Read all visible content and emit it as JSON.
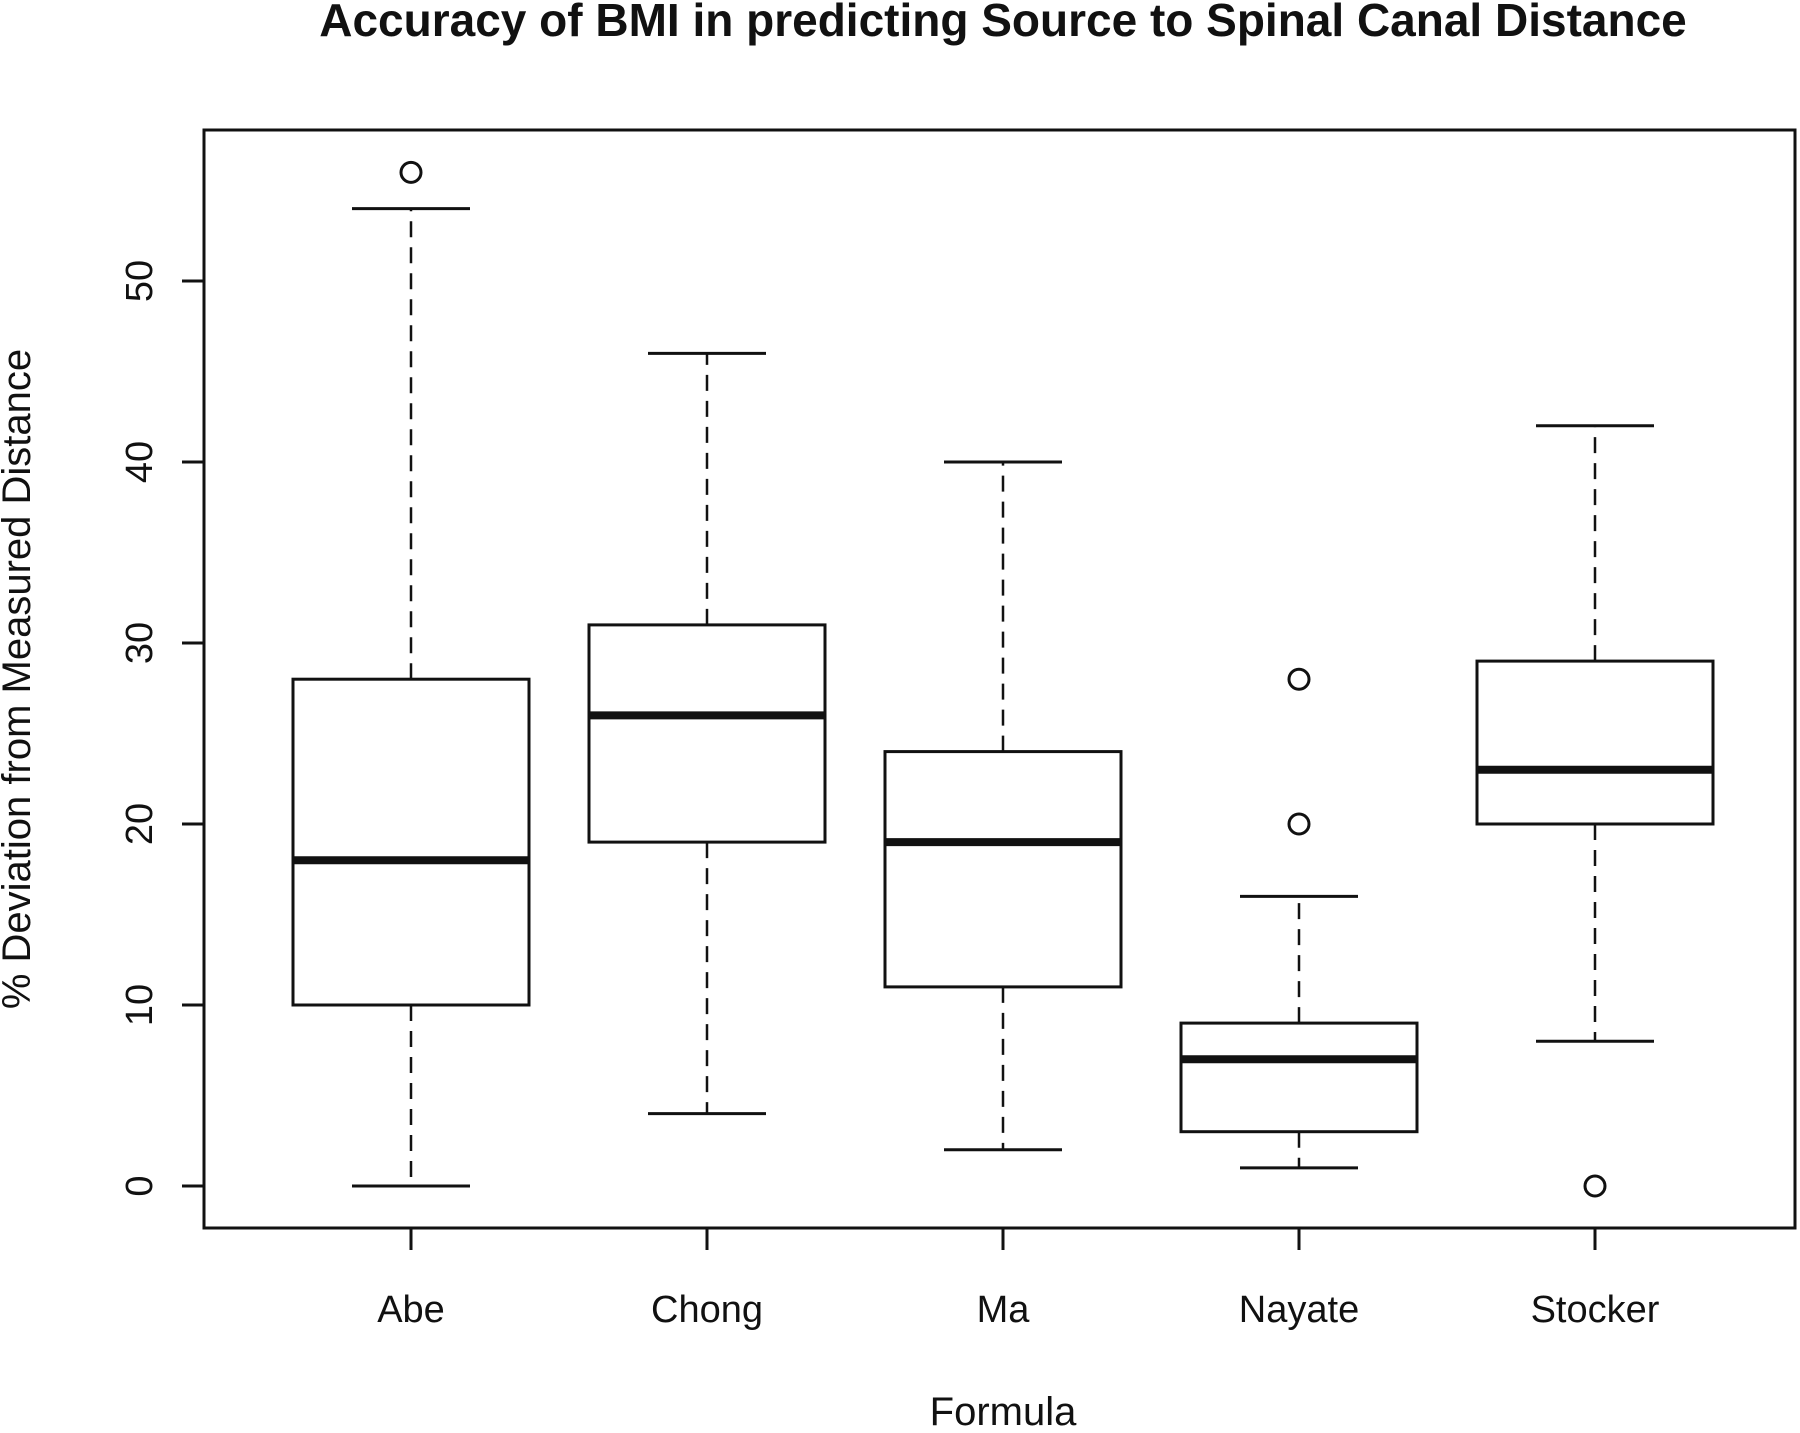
{
  "chart_data": {
    "type": "boxplot",
    "title": "Accuracy of BMI in predicting Source to Spinal Canal Distance",
    "xlabel": "Formula",
    "ylabel": "% Deviation from Measured Distance",
    "ylim": [
      -2.3,
      58.3
    ],
    "yticks": [
      0,
      10,
      20,
      30,
      40,
      50
    ],
    "ytick_labels": [
      "0",
      "10",
      "20",
      "30",
      "40",
      "50"
    ],
    "categories": [
      "Abe",
      "Chong",
      "Ma",
      "Nayate",
      "Stocker"
    ],
    "boxes": [
      {
        "name": "Abe",
        "whisker_low": 0,
        "q1": 10,
        "median": 18,
        "q3": 28,
        "whisker_high": 54,
        "outliers": [
          56
        ]
      },
      {
        "name": "Chong",
        "whisker_low": 4,
        "q1": 19,
        "median": 26,
        "q3": 31,
        "whisker_high": 46,
        "outliers": []
      },
      {
        "name": "Ma",
        "whisker_low": 2,
        "q1": 11,
        "median": 19,
        "q3": 24,
        "whisker_high": 40,
        "outliers": []
      },
      {
        "name": "Nayate",
        "whisker_low": 1,
        "q1": 3,
        "median": 7,
        "q3": 9,
        "whisker_high": 16,
        "outliers": [
          20,
          28
        ]
      },
      {
        "name": "Stocker",
        "whisker_low": 8,
        "q1": 20,
        "median": 23,
        "q3": 29,
        "whisker_high": 42,
        "outliers": [
          0
        ]
      }
    ],
    "grid": false,
    "legend": "none",
    "colors": {
      "line": "#111111",
      "box_fill": "#ffffff",
      "background": "#ffffff"
    }
  }
}
